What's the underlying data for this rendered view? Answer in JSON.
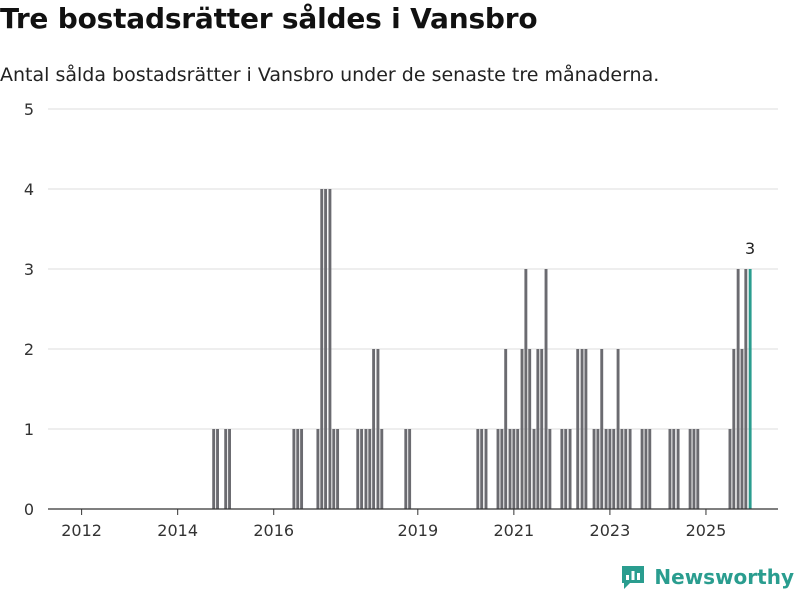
{
  "header": {
    "title": "Tre bostadsrätter såldes i Vansbro",
    "subtitle": "Antal sålda bostadsrätter i Vansbro under de senaste tre månaderna."
  },
  "brand": {
    "name": "Newsworthy",
    "icon": "newsworthy-logo-icon",
    "color": "#2a9d8f"
  },
  "colors": {
    "bar": "#6b6b70",
    "highlight": "#2a9d8f",
    "grid": "#dddddd",
    "axis": "#333333"
  },
  "chart_data": {
    "type": "bar",
    "title": "Tre bostadsrätter såldes i Vansbro",
    "subtitle": "Antal sålda bostadsrätter i Vansbro under de senaste tre månaderna.",
    "xlabel": "",
    "ylabel": "",
    "xlim": [
      2011.3,
      2026.5
    ],
    "ylim": [
      0,
      5
    ],
    "y_ticks": [
      0,
      1,
      2,
      3,
      4,
      5
    ],
    "x_ticks": [
      "2012",
      "2014",
      "2016",
      "2019",
      "2021",
      "2023",
      "2025"
    ],
    "grid": true,
    "x": [
      2014.75,
      2014.83,
      2014.92,
      2015.0,
      2015.08,
      2016.42,
      2016.5,
      2016.58,
      2016.92,
      2017.0,
      2017.08,
      2017.17,
      2017.25,
      2017.33,
      2017.75,
      2017.83,
      2017.92,
      2018.0,
      2018.08,
      2018.17,
      2018.25,
      2018.75,
      2018.83,
      2020.25,
      2020.33,
      2020.42,
      2020.67,
      2020.75,
      2020.83,
      2020.92,
      2021.0,
      2021.08,
      2021.17,
      2021.25,
      2021.33,
      2021.42,
      2021.5,
      2021.58,
      2021.67,
      2021.75,
      2022.0,
      2022.08,
      2022.17,
      2022.33,
      2022.42,
      2022.5,
      2022.67,
      2022.75,
      2022.83,
      2022.92,
      2023.0,
      2023.08,
      2023.17,
      2023.25,
      2023.33,
      2023.42,
      2023.67,
      2023.75,
      2023.83,
      2024.25,
      2024.33,
      2024.42,
      2024.67,
      2024.75,
      2024.83,
      2025.5,
      2025.58,
      2025.67,
      2025.75,
      2025.83,
      2025.92
    ],
    "values": [
      1,
      1,
      0,
      1,
      1,
      1,
      1,
      1,
      1,
      4,
      4,
      4,
      1,
      1,
      1,
      1,
      1,
      1,
      2,
      2,
      1,
      1,
      1,
      1,
      1,
      1,
      1,
      1,
      2,
      1,
      1,
      1,
      2,
      3,
      2,
      1,
      2,
      2,
      3,
      1,
      1,
      1,
      1,
      2,
      2,
      2,
      1,
      1,
      2,
      1,
      1,
      1,
      2,
      1,
      1,
      1,
      1,
      1,
      1,
      1,
      1,
      1,
      1,
      1,
      1,
      1,
      2,
      3,
      2,
      3,
      3
    ],
    "highlight_index": 70,
    "annotations": [
      {
        "x": 2025.92,
        "text": "3"
      }
    ]
  }
}
